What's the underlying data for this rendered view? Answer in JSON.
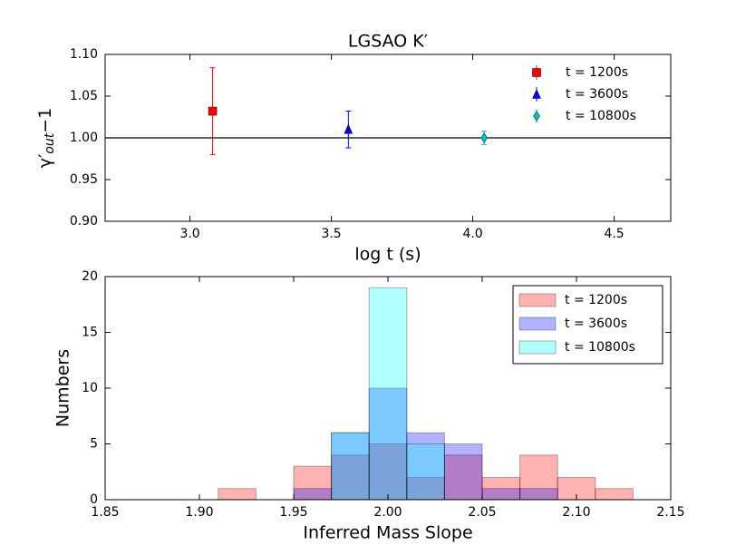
{
  "chart_data": [
    {
      "type": "errorbar",
      "title": "LGSAO K′",
      "xlabel": "log t (s)",
      "ylabel": {
        "symbol": "γ′",
        "subscript": "out",
        "suffix": "−1"
      },
      "xlim": [
        2.7,
        4.7
      ],
      "xticks": [
        {
          "value": 3.0,
          "label": "3.0"
        },
        3.5,
        {
          "value": 4.0,
          "label": "4.0"
        },
        4.5
      ],
      "ylim": [
        0.9,
        1.1
      ],
      "yticks": [
        {
          "value": 0.9,
          "label": "0.90"
        },
        0.95,
        {
          "value": 1.0,
          "label": "1.00"
        },
        1.05,
        {
          "value": 1.1,
          "label": "1.10"
        }
      ],
      "hline": 1.0,
      "legend": "upper right",
      "series": [
        {
          "name": "t = 1200s",
          "color": "#ff0000",
          "marker": "square",
          "x": [
            3.08
          ],
          "values": [
            1.032
          ],
          "errors": [
            0.052
          ]
        },
        {
          "name": "t = 3600s",
          "color": "#0000ff",
          "marker": "triangle",
          "x": [
            3.56
          ],
          "values": [
            1.01
          ],
          "errors": [
            0.022
          ]
        },
        {
          "name": "t = 10800s",
          "color": "#00bfbf",
          "marker": "diamond",
          "x": [
            4.04
          ],
          "values": [
            1.0
          ],
          "errors": [
            0.008
          ]
        }
      ]
    },
    {
      "type": "histogram",
      "xlabel": "Inferred Mass Slope",
      "ylabel": "Numbers",
      "bins": [
        1.85,
        1.87,
        1.89,
        1.91,
        1.93,
        1.95,
        1.97,
        1.99,
        2.01,
        2.03,
        2.05,
        2.07,
        2.09,
        2.11,
        2.13
      ],
      "xlim": [
        1.85,
        2.15
      ],
      "xticks": [
        1.85,
        {
          "value": 1.9,
          "label": "1.90"
        },
        1.95,
        {
          "value": 2.0,
          "label": "2.00"
        },
        2.05,
        {
          "value": 2.1,
          "label": "2.10"
        },
        2.15
      ],
      "ylim": [
        0,
        20
      ],
      "yticks": [
        0,
        5,
        10,
        15,
        20
      ],
      "legend": "upper right",
      "series": [
        {
          "name": "t = 1200s",
          "color": "#ff0000",
          "values": [
            0,
            0,
            0,
            1,
            0,
            3,
            4,
            5,
            2,
            4,
            2,
            4,
            2,
            1
          ]
        },
        {
          "name": "t = 3600s",
          "color": "#0000ff",
          "values": [
            0,
            0,
            0,
            0,
            0,
            1,
            6,
            10,
            6,
            5,
            1,
            1,
            0,
            0
          ]
        },
        {
          "name": "t = 10800s",
          "color": "#00ffff",
          "values": [
            0,
            0,
            0,
            0,
            0,
            0,
            6,
            19,
            5,
            0,
            0,
            0,
            0,
            0
          ]
        }
      ]
    }
  ]
}
